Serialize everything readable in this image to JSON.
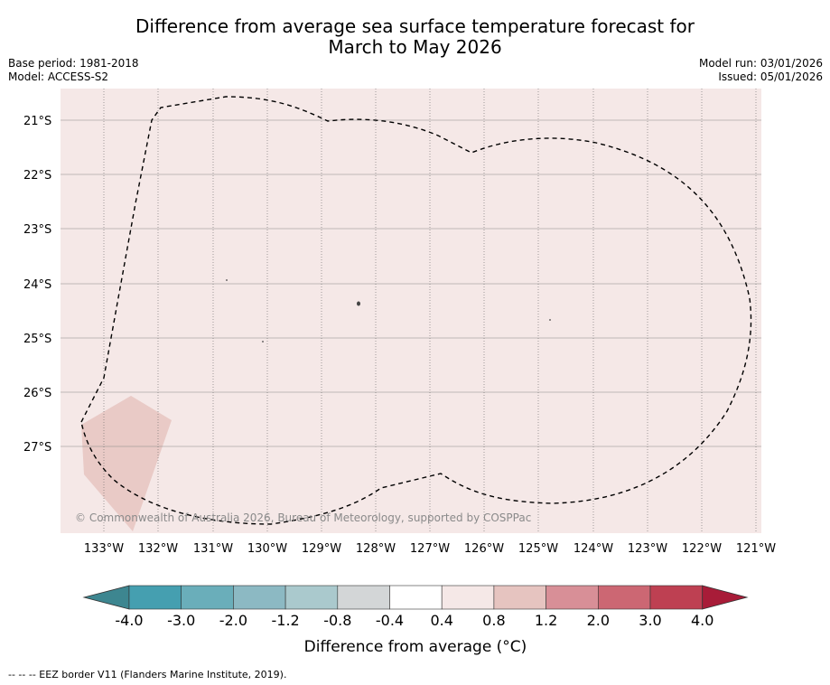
{
  "header": {
    "title_line1": "Difference from average sea surface temperature forecast for",
    "title_line2": "March to May 2026",
    "base_period": "Base period: 1981-2018",
    "model": "Model: ACCESS-S2",
    "model_run": "Model run: 03/01/2026",
    "issued": "Issued: 05/01/2026"
  },
  "map": {
    "background_color": "#f5e8e7",
    "patch_color": "#e6c4c0",
    "lat_labels": [
      "21°S",
      "22°S",
      "23°S",
      "24°S",
      "25°S",
      "26°S",
      "27°S"
    ],
    "lon_labels": [
      "133°W",
      "132°W",
      "131°W",
      "130°W",
      "129°W",
      "128°W",
      "127°W",
      "126°W",
      "125°W",
      "124°W",
      "123°W",
      "122°W",
      "121°W"
    ],
    "copyright": "© Commonwealth of Australia 2026, Bureau of Meteorology, supported by COSPPac"
  },
  "colorbar": {
    "title": "Difference from average (°C)",
    "tick_labels": [
      "-4.0",
      "-3.0",
      "-2.0",
      "-1.2",
      "-0.8",
      "-0.4",
      "0.4",
      "0.8",
      "1.2",
      "2.0",
      "3.0",
      "4.0"
    ],
    "under_color": "#3d8690",
    "over_color": "#a81c38",
    "colors": [
      "#459fb0",
      "#6aaeba",
      "#8cb9c3",
      "#aac9cd",
      "#d3d6d7",
      "#ffffff",
      "#f5e8e7",
      "#e6c4c0",
      "#d88f97",
      "#cc6773",
      "#be4052"
    ]
  },
  "footnote": "--  --  -- EEZ border V11 (Flanders Marine Institute, 2019)."
}
